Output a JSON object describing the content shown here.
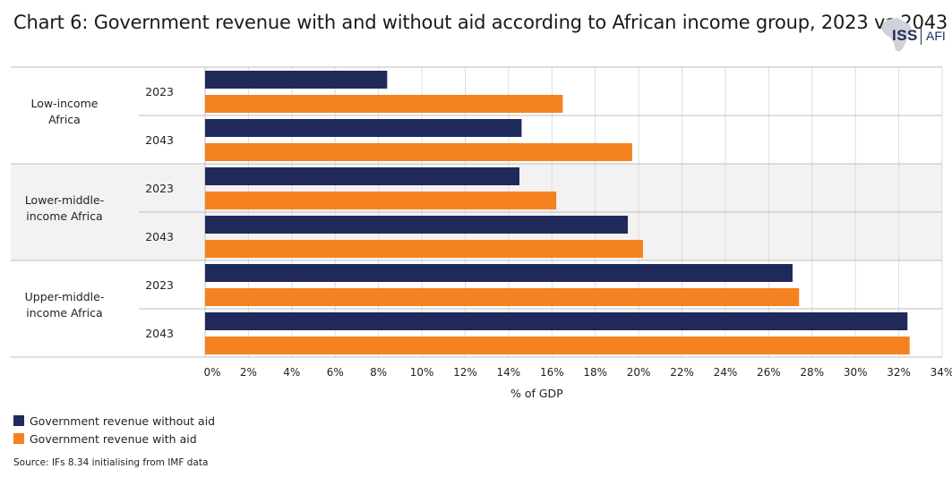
{
  "title": "Chart 6: Government revenue with and without aid according to African income group, 2023 vs 2043",
  "logo": {
    "text": "ISS",
    "suffix": "AFI"
  },
  "colors": {
    "without_aid": "#1f2a5a",
    "with_aid": "#f58220",
    "band": "#f2f2f2",
    "grid": "#dcdcdc",
    "axis": "#bfbfbf"
  },
  "chart_data": {
    "type": "bar",
    "orientation": "horizontal",
    "groups": [
      {
        "label": "Low-income Africa",
        "label_lines": [
          "Low-income",
          "Africa"
        ],
        "years": [
          "2023",
          "2043"
        ]
      },
      {
        "label": "Lower-middle-income Africa",
        "label_lines": [
          "Lower-middle-",
          "income Africa"
        ],
        "years": [
          "2023",
          "2043"
        ]
      },
      {
        "label": "Upper-middle-income Africa",
        "label_lines": [
          "Upper-middle-",
          "income Africa"
        ],
        "years": [
          "2023",
          "2043"
        ]
      }
    ],
    "series": [
      {
        "name": "Government revenue without aid",
        "values": [
          8.4,
          14.6,
          14.5,
          19.5,
          27.1,
          32.4
        ]
      },
      {
        "name": "Government revenue with aid",
        "values": [
          16.5,
          19.7,
          16.2,
          20.2,
          27.4,
          32.5
        ]
      }
    ],
    "xlabel": "% of GDP",
    "xlim": [
      0,
      34
    ],
    "xticks": [
      0,
      2,
      4,
      6,
      8,
      10,
      12,
      14,
      16,
      18,
      20,
      22,
      24,
      26,
      28,
      30,
      32,
      34
    ],
    "tick_suffix": "%",
    "legend_position": "bottom-left",
    "grid": true
  },
  "source": "Source: IFs 8.34 initialising from IMF data"
}
